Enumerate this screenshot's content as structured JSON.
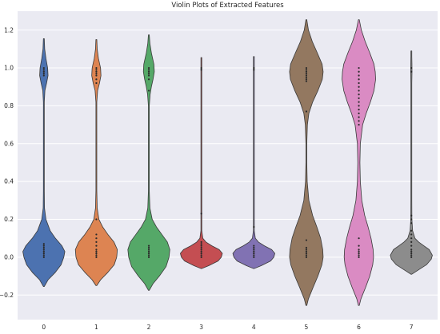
{
  "chart_data": {
    "type": "violin",
    "title": "Violin Plots of Extracted Features",
    "xlabel": "",
    "ylabel": "",
    "ylim": [
      -0.33,
      1.3
    ],
    "y_ticks": [
      -0.2,
      0.0,
      0.2,
      0.4,
      0.6,
      0.8,
      1.0,
      1.2
    ],
    "y_tick_labels": [
      "−0.2",
      "0.0",
      "0.2",
      "0.4",
      "0.6",
      "0.8",
      "1.0",
      "1.2"
    ],
    "grid": true,
    "categories": [
      "0",
      "1",
      "2",
      "3",
      "4",
      "5",
      "6",
      "7"
    ],
    "series": [
      {
        "color": "#4c72b0",
        "range": [
          -0.155,
          1.155
        ],
        "profile": [
          [
            -0.155,
            0
          ],
          [
            -0.12,
            0.2
          ],
          [
            -0.08,
            0.55
          ],
          [
            -0.04,
            0.82
          ],
          [
            0.0,
            0.95
          ],
          [
            0.03,
            1.0
          ],
          [
            0.06,
            0.86
          ],
          [
            0.1,
            0.55
          ],
          [
            0.14,
            0.3
          ],
          [
            0.2,
            0.1
          ],
          [
            0.26,
            0.03
          ],
          [
            0.35,
            0.012
          ],
          [
            0.5,
            0.008
          ],
          [
            0.7,
            0.008
          ],
          [
            0.82,
            0.015
          ],
          [
            0.88,
            0.05
          ],
          [
            0.92,
            0.13
          ],
          [
            0.96,
            0.2
          ],
          [
            1.0,
            0.18
          ],
          [
            1.05,
            0.1
          ],
          [
            1.1,
            0.04
          ],
          [
            1.155,
            0
          ]
        ],
        "points": [
          0.0,
          0.01,
          0.02,
          0.03,
          0.04,
          0.05,
          0.06,
          0.07,
          0.96,
          0.97,
          0.98,
          0.99,
          1.0
        ]
      },
      {
        "color": "#dd8452",
        "range": [
          -0.15,
          1.15
        ],
        "profile": [
          [
            -0.15,
            0
          ],
          [
            -0.12,
            0.2
          ],
          [
            -0.08,
            0.55
          ],
          [
            -0.04,
            0.85
          ],
          [
            0.0,
            0.97
          ],
          [
            0.04,
            1.0
          ],
          [
            0.08,
            0.84
          ],
          [
            0.12,
            0.55
          ],
          [
            0.16,
            0.3
          ],
          [
            0.2,
            0.12
          ],
          [
            0.26,
            0.04
          ],
          [
            0.35,
            0.015
          ],
          [
            0.5,
            0.01
          ],
          [
            0.7,
            0.01
          ],
          [
            0.82,
            0.02
          ],
          [
            0.88,
            0.06
          ],
          [
            0.92,
            0.15
          ],
          [
            0.96,
            0.22
          ],
          [
            1.0,
            0.2
          ],
          [
            1.05,
            0.1
          ],
          [
            1.1,
            0.04
          ],
          [
            1.15,
            0
          ]
        ],
        "points": [
          0.0,
          0.01,
          0.02,
          0.03,
          0.04,
          0.06,
          0.08,
          0.1,
          0.12,
          0.2,
          0.92,
          0.94,
          0.96,
          0.97,
          0.98,
          0.99,
          1.0
        ]
      },
      {
        "color": "#55a868",
        "range": [
          -0.175,
          1.175
        ],
        "profile": [
          [
            -0.175,
            0
          ],
          [
            -0.14,
            0.2
          ],
          [
            -0.1,
            0.5
          ],
          [
            -0.05,
            0.82
          ],
          [
            0.0,
            0.96
          ],
          [
            0.04,
            1.0
          ],
          [
            0.08,
            0.88
          ],
          [
            0.12,
            0.62
          ],
          [
            0.16,
            0.36
          ],
          [
            0.2,
            0.16
          ],
          [
            0.26,
            0.05
          ],
          [
            0.35,
            0.015
          ],
          [
            0.5,
            0.01
          ],
          [
            0.7,
            0.01
          ],
          [
            0.8,
            0.02
          ],
          [
            0.86,
            0.06
          ],
          [
            0.9,
            0.12
          ],
          [
            0.94,
            0.2
          ],
          [
            0.98,
            0.26
          ],
          [
            1.02,
            0.24
          ],
          [
            1.08,
            0.12
          ],
          [
            1.13,
            0.05
          ],
          [
            1.175,
            0
          ]
        ],
        "points": [
          0.0,
          0.01,
          0.02,
          0.03,
          0.04,
          0.05,
          0.06,
          0.88,
          0.94,
          0.96,
          0.97,
          0.98,
          0.99,
          1.0
        ]
      },
      {
        "color": "#c44e52",
        "range": [
          -0.06,
          1.055
        ],
        "profile": [
          [
            -0.06,
            0
          ],
          [
            -0.045,
            0.35
          ],
          [
            -0.02,
            0.8
          ],
          [
            0.0,
            0.95
          ],
          [
            0.02,
            1.0
          ],
          [
            0.04,
            0.85
          ],
          [
            0.06,
            0.5
          ],
          [
            0.08,
            0.22
          ],
          [
            0.1,
            0.07
          ],
          [
            0.14,
            0.02
          ],
          [
            0.2,
            0.012
          ],
          [
            0.4,
            0.008
          ],
          [
            0.7,
            0.008
          ],
          [
            0.9,
            0.01
          ],
          [
            0.96,
            0.02
          ],
          [
            1.0,
            0.02
          ],
          [
            1.02,
            0.012
          ],
          [
            1.055,
            0
          ]
        ],
        "points": [
          0.0,
          0.01,
          0.02,
          0.03,
          0.04,
          0.05,
          0.06,
          0.07,
          0.08,
          0.23,
          0.99,
          1.0
        ]
      },
      {
        "color": "#8172b3",
        "range": [
          -0.06,
          1.06
        ],
        "profile": [
          [
            -0.06,
            0
          ],
          [
            -0.045,
            0.35
          ],
          [
            -0.02,
            0.8
          ],
          [
            0.0,
            0.95
          ],
          [
            0.02,
            1.0
          ],
          [
            0.04,
            0.85
          ],
          [
            0.06,
            0.5
          ],
          [
            0.08,
            0.22
          ],
          [
            0.1,
            0.07
          ],
          [
            0.14,
            0.02
          ],
          [
            0.2,
            0.012
          ],
          [
            0.4,
            0.008
          ],
          [
            0.7,
            0.008
          ],
          [
            0.9,
            0.01
          ],
          [
            0.96,
            0.02
          ],
          [
            1.0,
            0.02
          ],
          [
            1.02,
            0.012
          ],
          [
            1.06,
            0
          ]
        ],
        "points": [
          0.0,
          0.01,
          0.02,
          0.03,
          0.04,
          0.05,
          0.06,
          0.16,
          0.99,
          1.0
        ]
      },
      {
        "color": "#937860",
        "range": [
          -0.255,
          1.255
        ],
        "profile": [
          [
            -0.255,
            0
          ],
          [
            -0.22,
            0.1
          ],
          [
            -0.16,
            0.32
          ],
          [
            -0.1,
            0.55
          ],
          [
            -0.04,
            0.74
          ],
          [
            0.0,
            0.8
          ],
          [
            0.04,
            0.78
          ],
          [
            0.1,
            0.68
          ],
          [
            0.16,
            0.5
          ],
          [
            0.22,
            0.3
          ],
          [
            0.3,
            0.12
          ],
          [
            0.4,
            0.04
          ],
          [
            0.5,
            0.02
          ],
          [
            0.6,
            0.02
          ],
          [
            0.7,
            0.05
          ],
          [
            0.76,
            0.12
          ],
          [
            0.82,
            0.3
          ],
          [
            0.88,
            0.55
          ],
          [
            0.94,
            0.76
          ],
          [
            0.98,
            0.8
          ],
          [
            1.02,
            0.75
          ],
          [
            1.08,
            0.52
          ],
          [
            1.14,
            0.28
          ],
          [
            1.2,
            0.1
          ],
          [
            1.255,
            0
          ]
        ],
        "points": [
          0.0,
          0.01,
          0.02,
          0.03,
          0.04,
          0.05,
          0.09,
          0.77,
          0.93,
          0.94,
          0.95,
          0.96,
          0.97,
          0.98,
          0.99,
          1.0
        ]
      },
      {
        "color": "#da8bc3",
        "range": [
          -0.255,
          1.255
        ],
        "profile": [
          [
            -0.255,
            0
          ],
          [
            -0.22,
            0.1
          ],
          [
            -0.16,
            0.32
          ],
          [
            -0.1,
            0.52
          ],
          [
            -0.04,
            0.66
          ],
          [
            0.0,
            0.7
          ],
          [
            0.04,
            0.68
          ],
          [
            0.1,
            0.58
          ],
          [
            0.16,
            0.44
          ],
          [
            0.22,
            0.28
          ],
          [
            0.3,
            0.14
          ],
          [
            0.4,
            0.07
          ],
          [
            0.5,
            0.05
          ],
          [
            0.6,
            0.07
          ],
          [
            0.7,
            0.18
          ],
          [
            0.76,
            0.35
          ],
          [
            0.82,
            0.55
          ],
          [
            0.88,
            0.72
          ],
          [
            0.94,
            0.8
          ],
          [
            0.98,
            0.78
          ],
          [
            1.02,
            0.72
          ],
          [
            1.08,
            0.52
          ],
          [
            1.14,
            0.3
          ],
          [
            1.2,
            0.12
          ],
          [
            1.255,
            0
          ]
        ],
        "points": [
          0.0,
          0.01,
          0.02,
          0.03,
          0.04,
          0.06,
          0.1,
          0.7,
          0.72,
          0.74,
          0.76,
          0.78,
          0.8,
          0.82,
          0.84,
          0.86,
          0.88,
          0.9,
          0.92,
          0.94,
          0.96,
          0.98,
          1.0
        ]
      },
      {
        "color": "#8c8c8c",
        "range": [
          -0.09,
          1.09
        ],
        "profile": [
          [
            -0.09,
            0
          ],
          [
            -0.07,
            0.3
          ],
          [
            -0.04,
            0.72
          ],
          [
            -0.01,
            0.95
          ],
          [
            0.01,
            1.0
          ],
          [
            0.04,
            0.85
          ],
          [
            0.06,
            0.6
          ],
          [
            0.08,
            0.35
          ],
          [
            0.1,
            0.17
          ],
          [
            0.14,
            0.06
          ],
          [
            0.2,
            0.025
          ],
          [
            0.3,
            0.012
          ],
          [
            0.5,
            0.008
          ],
          [
            0.8,
            0.008
          ],
          [
            0.92,
            0.015
          ],
          [
            0.98,
            0.03
          ],
          [
            1.02,
            0.028
          ],
          [
            1.06,
            0.012
          ],
          [
            1.09,
            0
          ]
        ],
        "points": [
          0.0,
          0.01,
          0.02,
          0.03,
          0.04,
          0.06,
          0.08,
          0.1,
          0.12,
          0.14,
          0.18,
          0.2,
          0.22,
          0.98,
          1.0
        ]
      }
    ]
  }
}
